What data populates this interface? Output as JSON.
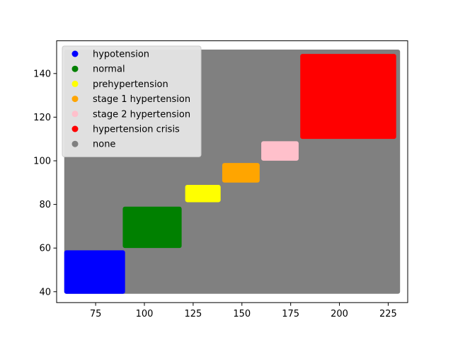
{
  "chart_data": {
    "type": "scatter",
    "title": "",
    "xlabel": "",
    "ylabel": "",
    "xlim": [
      55,
      235
    ],
    "ylim": [
      35,
      155
    ],
    "xticks": [
      75,
      100,
      125,
      150,
      175,
      200,
      225
    ],
    "yticks": [
      40,
      60,
      80,
      100,
      120,
      140
    ],
    "grid": false,
    "legend_position": "top-left",
    "series": [
      {
        "name": "none",
        "color": "#808080",
        "x_range": [
          60,
          230
        ],
        "y_range": [
          40,
          150
        ]
      },
      {
        "name": "hypotension",
        "color": "#0000ff",
        "x_range": [
          60,
          89
        ],
        "y_range": [
          40,
          58
        ]
      },
      {
        "name": "normal",
        "color": "#008000",
        "x_range": [
          90,
          118
        ],
        "y_range": [
          61,
          78
        ]
      },
      {
        "name": "prehypertension",
        "color": "#ffff00",
        "x_range": [
          122,
          138
        ],
        "y_range": [
          82,
          88
        ]
      },
      {
        "name": "stage 1 hypertension",
        "color": "#ffa500",
        "x_range": [
          141,
          158
        ],
        "y_range": [
          91,
          98
        ]
      },
      {
        "name": "stage 2 hypertension",
        "color": "#ffc0cb",
        "x_range": [
          161,
          178
        ],
        "y_range": [
          101,
          108
        ]
      },
      {
        "name": "hypertension crisis",
        "color": "#ff0000",
        "x_range": [
          181,
          228
        ],
        "y_range": [
          111,
          148
        ]
      }
    ],
    "legend_order": [
      "hypotension",
      "normal",
      "prehypertension",
      "stage 1 hypertension",
      "stage 2 hypertension",
      "hypertension crisis",
      "none"
    ]
  }
}
